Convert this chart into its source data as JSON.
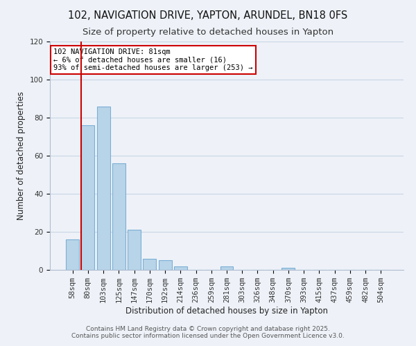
{
  "title": "102, NAVIGATION DRIVE, YAPTON, ARUNDEL, BN18 0FS",
  "subtitle": "Size of property relative to detached houses in Yapton",
  "xlabel": "Distribution of detached houses by size in Yapton",
  "ylabel": "Number of detached properties",
  "bar_labels": [
    "58sqm",
    "80sqm",
    "103sqm",
    "125sqm",
    "147sqm",
    "170sqm",
    "192sqm",
    "214sqm",
    "236sqm",
    "259sqm",
    "281sqm",
    "303sqm",
    "326sqm",
    "348sqm",
    "370sqm",
    "393sqm",
    "415sqm",
    "437sqm",
    "459sqm",
    "482sqm",
    "504sqm"
  ],
  "bar_heights": [
    16,
    76,
    86,
    56,
    21,
    6,
    5,
    2,
    0,
    0,
    2,
    0,
    0,
    0,
    1,
    0,
    0,
    0,
    0,
    0,
    0
  ],
  "bar_color": "#b8d4e8",
  "bar_edge_color": "#7bafd4",
  "grid_color": "#c8d4e4",
  "background_color": "#eef2f8",
  "marker_color": "#cc0000",
  "annotation_title": "102 NAVIGATION DRIVE: 81sqm",
  "annotation_line1": "← 6% of detached houses are smaller (16)",
  "annotation_line2": "93% of semi-detached houses are larger (253) →",
  "annotation_box_color": "#ffffff",
  "annotation_box_edge": "#cc0000",
  "ylim": [
    0,
    120
  ],
  "yticks": [
    0,
    20,
    40,
    60,
    80,
    100,
    120
  ],
  "footer1": "Contains HM Land Registry data © Crown copyright and database right 2025.",
  "footer2": "Contains public sector information licensed under the Open Government Licence v3.0.",
  "title_fontsize": 10.5,
  "subtitle_fontsize": 9.5,
  "axis_label_fontsize": 8.5,
  "tick_fontsize": 7.5,
  "annotation_fontsize": 7.5,
  "footer_fontsize": 6.5
}
